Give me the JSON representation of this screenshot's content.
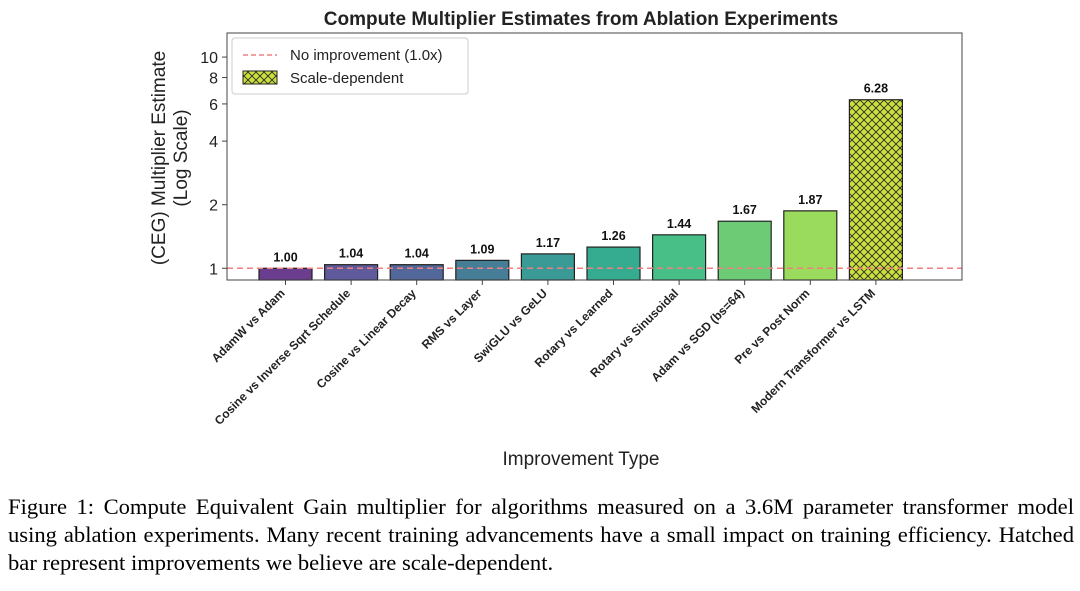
{
  "chart_data": {
    "type": "bar",
    "title": "Compute Multiplier Estimates from Ablation Experiments",
    "xlabel": "Improvement Type",
    "ylabel_line1": "(CEG) Multiplier Estimate",
    "ylabel_line2": "(Log Scale)",
    "yscale": "log",
    "ylim": [
      0.88,
      13
    ],
    "yticks": [
      1,
      2,
      4,
      6,
      8,
      10
    ],
    "ytick_labels": [
      "1",
      "2",
      "4",
      "6",
      "8",
      "10"
    ],
    "categories": [
      "AdamW vs Adam",
      "Cosine vs Inverse Sqrt Schedule",
      "Cosine vs Linear Decay",
      "RMS vs Layer",
      "SwiGLU vs GeLU",
      "Rotary vs Learned",
      "Rotary vs Sinusoidal",
      "Adam vs SGD (bs=64)",
      "Pre vs Post Norm",
      "Modern Transformer vs LSTM"
    ],
    "values": [
      1.0,
      1.04,
      1.04,
      1.09,
      1.17,
      1.26,
      1.44,
      1.67,
      1.87,
      6.28
    ],
    "value_labels": [
      "1.00",
      "1.04",
      "1.04",
      "1.09",
      "1.17",
      "1.26",
      "1.44",
      "1.67",
      "1.87",
      "6.28"
    ],
    "colors": [
      "#6a3d8f",
      "#5f5a9c",
      "#52689a",
      "#467d97",
      "#3a9a96",
      "#35ab90",
      "#47bf87",
      "#6ccb74",
      "#9ada5c",
      "#cce03a"
    ],
    "hatched": [
      false,
      false,
      false,
      false,
      false,
      false,
      false,
      false,
      false,
      true
    ],
    "reference_line": {
      "value": 1.0,
      "color": "#f08080"
    },
    "legend": {
      "position": "top-left",
      "entries": [
        {
          "label": "No improvement (1.0x)",
          "kind": "dashed-line"
        },
        {
          "label": "Scale-dependent",
          "kind": "hatched-patch"
        }
      ]
    },
    "grid": false
  },
  "caption": "Figure 1: Compute Equivalent Gain multiplier for algorithms measured on a 3.6M parameter transformer model using ablation experiments. Many recent training advancements have a small impact on training efficiency. Hatched bar represent improvements we believe are scale-dependent."
}
